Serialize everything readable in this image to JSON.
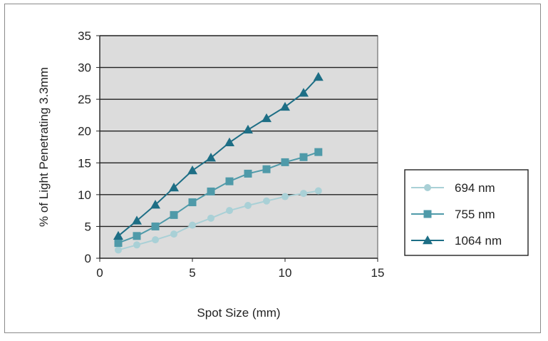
{
  "chart_data": {
    "type": "line",
    "xlabel": "Spot Size (mm)",
    "ylabel": "% of Light Penetrating 3.3mm",
    "xlim": [
      0,
      15
    ],
    "ylim": [
      0,
      35
    ],
    "xticks": [
      0,
      5,
      10,
      15
    ],
    "yticks": [
      0,
      5,
      10,
      15,
      20,
      25,
      30,
      35
    ],
    "grid": "horizontal",
    "plot_background": "#dcdcdc",
    "legend_position": "right",
    "series": [
      {
        "name": "694 nm",
        "marker": "circle",
        "color": "#a9d0d6",
        "x": [
          1,
          2,
          3,
          4,
          5,
          6,
          7,
          8,
          9,
          10,
          11,
          11.8
        ],
        "y": [
          1.3,
          2.1,
          2.9,
          3.8,
          5.2,
          6.3,
          7.5,
          8.3,
          9.0,
          9.7,
          10.2,
          10.6
        ]
      },
      {
        "name": "755 nm",
        "marker": "square",
        "color": "#4f9aa9",
        "x": [
          1,
          2,
          3,
          4,
          5,
          6,
          7,
          8,
          9,
          10,
          11,
          11.8
        ],
        "y": [
          2.4,
          3.5,
          5.0,
          6.8,
          8.8,
          10.5,
          12.1,
          13.3,
          14.0,
          15.1,
          15.9,
          16.7
        ]
      },
      {
        "name": "1064 nm",
        "marker": "triangle",
        "color": "#1d6e85",
        "x": [
          1,
          2,
          3,
          4,
          5,
          6,
          7,
          8,
          9,
          10,
          11,
          11.8
        ],
        "y": [
          3.5,
          5.9,
          8.4,
          11.1,
          13.8,
          15.8,
          18.2,
          20.2,
          22.0,
          23.8,
          26.0,
          28.5
        ]
      }
    ]
  }
}
